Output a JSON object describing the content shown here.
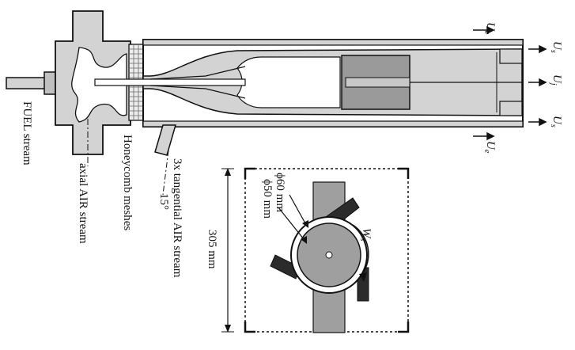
{
  "labels": {
    "fuel_stream": "FUEL stream",
    "axial_air_stream": "axial AIR stream",
    "honeycomb_meshes": "Honeycomb meshes",
    "tangential_air_stream": "3x tangential AIR stream",
    "angle": "15°",
    "width": "305 mm",
    "outer_diameter": "ϕ60 mm",
    "inner_diameter": "ϕ50 mm",
    "swirl_velocity": "W",
    "swirl_velocity_sub": "s",
    "velocity_U": "U",
    "sub_e": "e",
    "sub_s": "s",
    "sub_j": "j"
  },
  "colors": {
    "line": "#111111",
    "body_fill": "#d3d3d3",
    "bluff_body": "#9a9a9a",
    "dark_block": "#2b2b2b",
    "hub": "#c8c8c8"
  }
}
